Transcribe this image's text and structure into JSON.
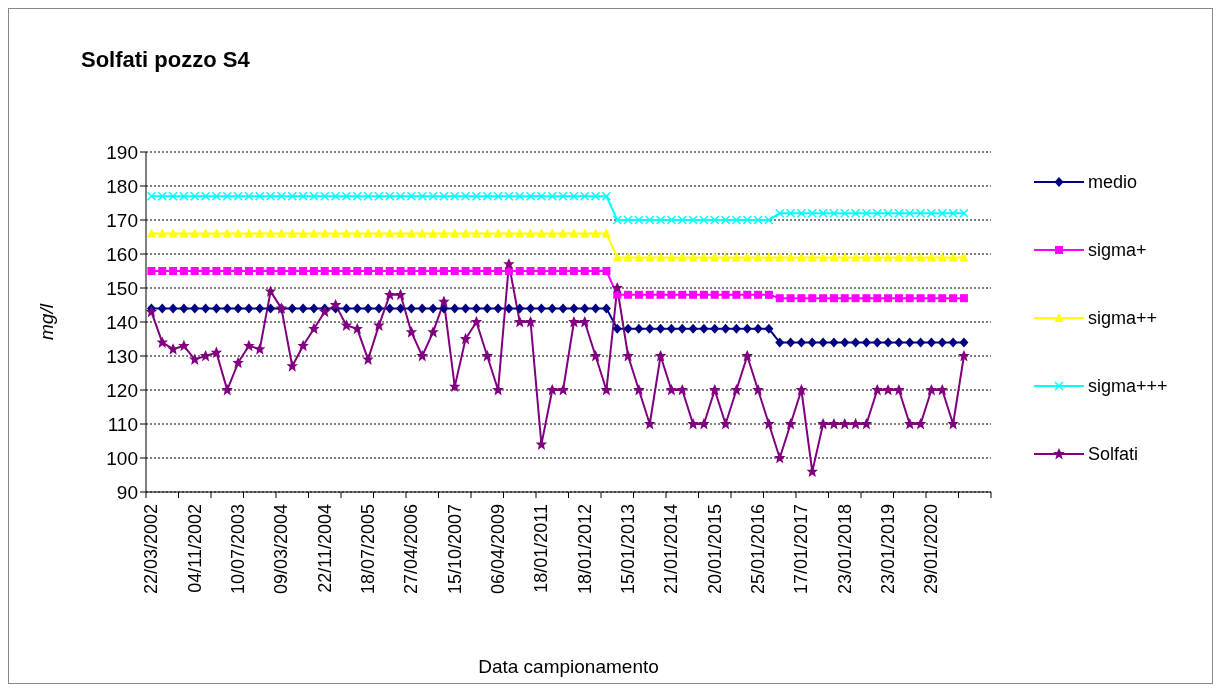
{
  "chart_data": {
    "type": "line",
    "title": "Solfati pozzo S4",
    "xlabel": "Data campionamento",
    "ylabel": "mg/l",
    "categories": [
      "22/03/2002",
      null,
      null,
      null,
      "04/11/2002",
      null,
      null,
      null,
      "10/07/2003",
      null,
      null,
      null,
      "09/03/2004",
      null,
      null,
      null,
      "22/11/2004",
      null,
      null,
      null,
      "18/07/2005",
      null,
      null,
      null,
      "27/04/2006",
      null,
      null,
      null,
      "15/10/2007",
      null,
      null,
      null,
      "06/04/2009",
      null,
      null,
      null,
      "18/01/2011",
      null,
      null,
      null,
      "18/01/2012",
      null,
      null,
      null,
      "15/01/2013",
      null,
      null,
      null,
      "21/01/2014",
      null,
      null,
      null,
      "20/01/2015",
      null,
      null,
      null,
      "25/01/2016",
      null,
      null,
      null,
      "17/01/2017",
      null,
      null,
      null,
      "23/01/2018",
      null,
      null,
      null,
      "23/01/2019",
      null,
      null,
      null,
      "29/01/2020",
      null,
      null,
      null,
      null,
      null
    ],
    "series": [
      {
        "name": "medio",
        "color": "#000080",
        "marker": "diamond",
        "values": [
          144,
          144,
          144,
          144,
          144,
          144,
          144,
          144,
          144,
          144,
          144,
          144,
          144,
          144,
          144,
          144,
          144,
          144,
          144,
          144,
          144,
          144,
          144,
          144,
          144,
          144,
          144,
          144,
          144,
          144,
          144,
          144,
          144,
          144,
          144,
          144,
          144,
          144,
          144,
          144,
          144,
          144,
          144,
          138,
          138,
          138,
          138,
          138,
          138,
          138,
          138,
          138,
          138,
          138,
          138,
          138,
          138,
          138,
          134,
          134,
          134,
          134,
          134,
          134,
          134,
          134,
          134,
          134,
          134,
          134,
          134,
          134,
          134,
          134,
          134,
          134,
          null,
          null
        ]
      },
      {
        "name": "sigma+",
        "color": "#ff00ff",
        "marker": "square",
        "values": [
          155,
          155,
          155,
          155,
          155,
          155,
          155,
          155,
          155,
          155,
          155,
          155,
          155,
          155,
          155,
          155,
          155,
          155,
          155,
          155,
          155,
          155,
          155,
          155,
          155,
          155,
          155,
          155,
          155,
          155,
          155,
          155,
          155,
          155,
          155,
          155,
          155,
          155,
          155,
          155,
          155,
          155,
          155,
          148,
          148,
          148,
          148,
          148,
          148,
          148,
          148,
          148,
          148,
          148,
          148,
          148,
          148,
          148,
          147,
          147,
          147,
          147,
          147,
          147,
          147,
          147,
          147,
          147,
          147,
          147,
          147,
          147,
          147,
          147,
          147,
          147,
          null,
          null
        ]
      },
      {
        "name": "sigma++",
        "color": "#ffff00",
        "marker": "triangle",
        "values": [
          166,
          166,
          166,
          166,
          166,
          166,
          166,
          166,
          166,
          166,
          166,
          166,
          166,
          166,
          166,
          166,
          166,
          166,
          166,
          166,
          166,
          166,
          166,
          166,
          166,
          166,
          166,
          166,
          166,
          166,
          166,
          166,
          166,
          166,
          166,
          166,
          166,
          166,
          166,
          166,
          166,
          166,
          166,
          159,
          159,
          159,
          159,
          159,
          159,
          159,
          159,
          159,
          159,
          159,
          159,
          159,
          159,
          159,
          159,
          159,
          159,
          159,
          159,
          159,
          159,
          159,
          159,
          159,
          159,
          159,
          159,
          159,
          159,
          159,
          159,
          159,
          null,
          null
        ]
      },
      {
        "name": "sigma+++",
        "color": "#00ffff",
        "marker": "cross",
        "values": [
          177,
          177,
          177,
          177,
          177,
          177,
          177,
          177,
          177,
          177,
          177,
          177,
          177,
          177,
          177,
          177,
          177,
          177,
          177,
          177,
          177,
          177,
          177,
          177,
          177,
          177,
          177,
          177,
          177,
          177,
          177,
          177,
          177,
          177,
          177,
          177,
          177,
          177,
          177,
          177,
          177,
          177,
          177,
          170,
          170,
          170,
          170,
          170,
          170,
          170,
          170,
          170,
          170,
          170,
          170,
          170,
          170,
          170,
          172,
          172,
          172,
          172,
          172,
          172,
          172,
          172,
          172,
          172,
          172,
          172,
          172,
          172,
          172,
          172,
          172,
          172,
          null,
          null
        ]
      },
      {
        "name": "Solfati",
        "color": "#800080",
        "marker": "star",
        "values": [
          143,
          134,
          132,
          133,
          129,
          130,
          131,
          120,
          128,
          133,
          132,
          149,
          144,
          127,
          133,
          138,
          143,
          145,
          139,
          138,
          129,
          139,
          148,
          148,
          137,
          130,
          137,
          146,
          121,
          135,
          140,
          130,
          120,
          157,
          140,
          140,
          104,
          120,
          120,
          140,
          140,
          130,
          120,
          150,
          130,
          120,
          110,
          130,
          120,
          120,
          110,
          110,
          120,
          110,
          120,
          130,
          120,
          110,
          100,
          110,
          120,
          96,
          110,
          110,
          110,
          110,
          110,
          120,
          120,
          120,
          110,
          110,
          120,
          120,
          110,
          130,
          null,
          null
        ]
      }
    ],
    "ylim": [
      90,
      190
    ],
    "yticks": [
      90,
      100,
      110,
      120,
      130,
      140,
      150,
      160,
      170,
      180,
      190
    ],
    "grid": "y",
    "legend": "right",
    "line_style": "solid"
  }
}
